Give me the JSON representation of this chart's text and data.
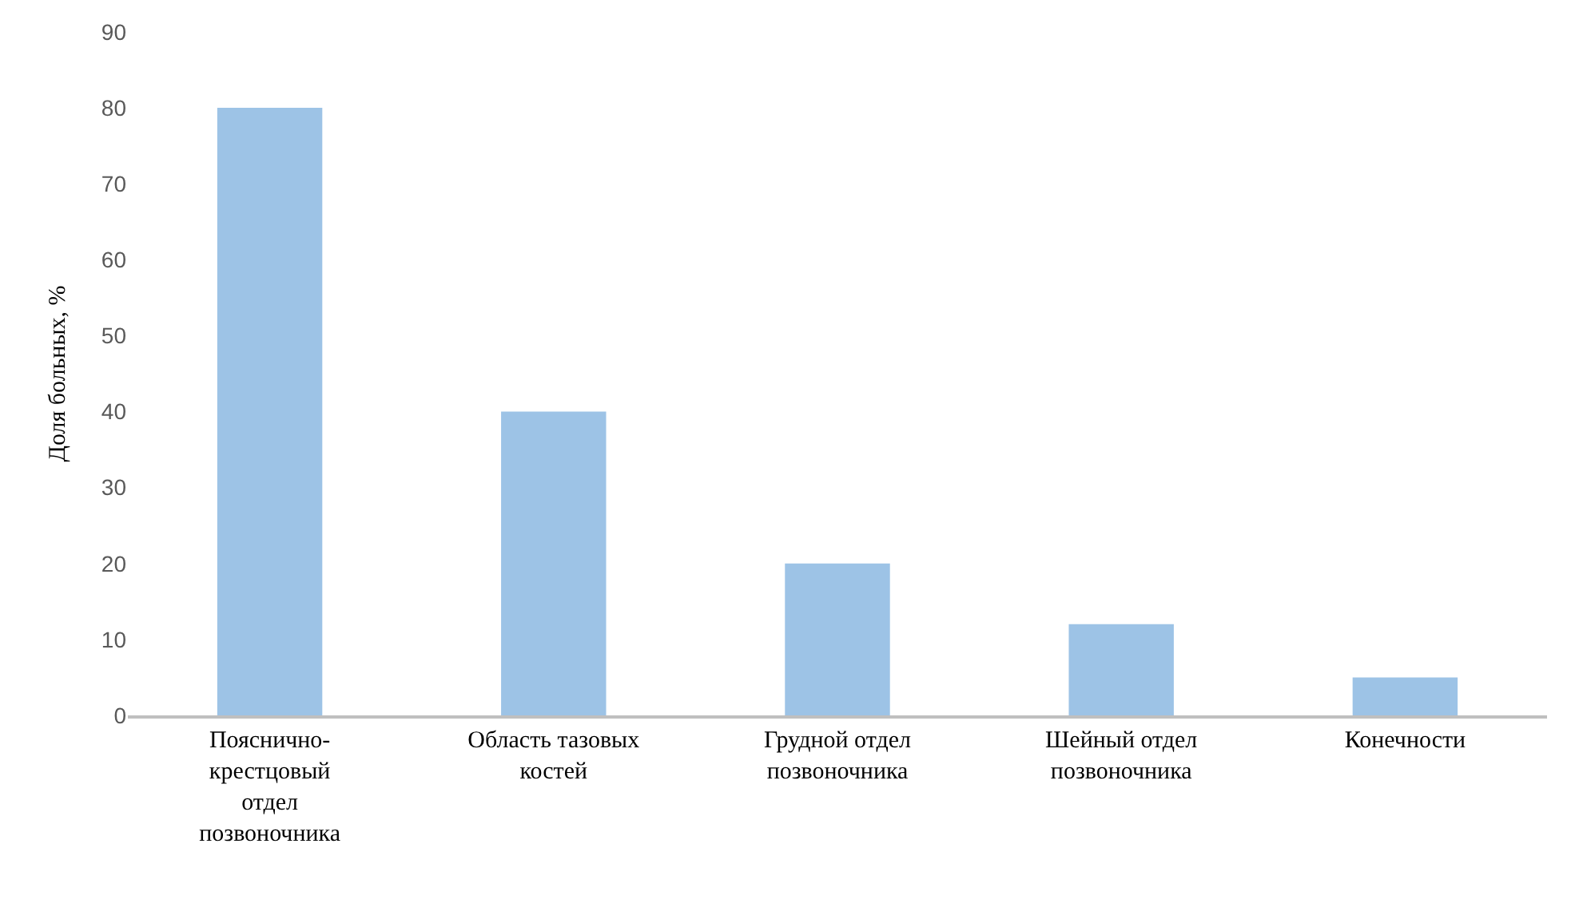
{
  "chart_data": {
    "type": "bar",
    "ylabel": "Доля больных, %",
    "categories": [
      "Пояснично-крестцовый отдел позвоночника",
      "Область тазовых костей",
      "Грудной отдел позвоночника",
      "Шейный отдел позвоночника",
      "Конечности"
    ],
    "values": [
      80,
      40,
      20,
      12,
      5
    ],
    "color": "#9dc3e6",
    "ylim": [
      0,
      90
    ],
    "yticks": [
      0,
      10,
      20,
      30,
      40,
      50,
      60,
      70,
      80,
      90
    ],
    "grid": false
  }
}
